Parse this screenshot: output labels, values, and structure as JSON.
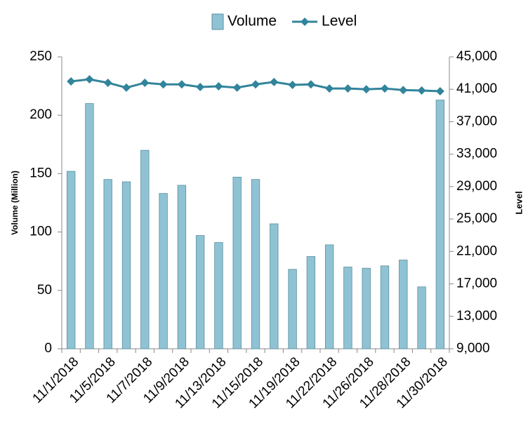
{
  "chart_data": {
    "type": "bar_line",
    "categories": [
      "11/1/2018",
      null,
      "11/5/2018",
      null,
      "11/7/2018",
      null,
      "11/9/2018",
      null,
      "11/13/2018",
      null,
      "11/15/2018",
      null,
      "11/19/2018",
      null,
      "11/22/2018",
      null,
      "11/26/2018",
      null,
      "11/28/2018",
      null,
      "11/30/2018"
    ],
    "series": [
      {
        "name": "Volume",
        "type": "bar",
        "color": "#8fc3d3",
        "values": [
          152,
          210,
          145,
          143,
          170,
          133,
          140,
          97,
          91,
          147,
          145,
          107,
          68,
          79,
          89,
          70,
          69,
          71,
          76,
          53,
          213
        ]
      },
      {
        "name": "Level",
        "type": "line",
        "axis": "y2",
        "color": "#31849b",
        "values": [
          41970,
          42230,
          41800,
          41200,
          41800,
          41600,
          41600,
          41280,
          41370,
          41200,
          41600,
          41900,
          41540,
          41600,
          41100,
          41100,
          41000,
          41100,
          40900,
          40850,
          40760
        ]
      }
    ],
    "ylabel": "Volume  (Million)",
    "y2label": "Level",
    "ylim": [
      0,
      250
    ],
    "yticks": [
      0,
      50,
      100,
      150,
      200,
      250
    ],
    "y2lim": [
      9000,
      45000
    ],
    "y2ticks": [
      {
        "value": 9000,
        "label": "9,000"
      },
      {
        "value": 13000,
        "label": "13,000"
      },
      {
        "value": 17000,
        "label": "17,000"
      },
      {
        "value": 21000,
        "label": "21,000"
      },
      {
        "value": 25000,
        "label": "25,000"
      },
      {
        "value": 29000,
        "label": "29,000"
      },
      {
        "value": 33000,
        "label": "33,000"
      },
      {
        "value": 37000,
        "label": "37,000"
      },
      {
        "value": 41000,
        "label": "41,000"
      },
      {
        "value": 45000,
        "label": "45,000"
      }
    ],
    "legend": "top"
  }
}
